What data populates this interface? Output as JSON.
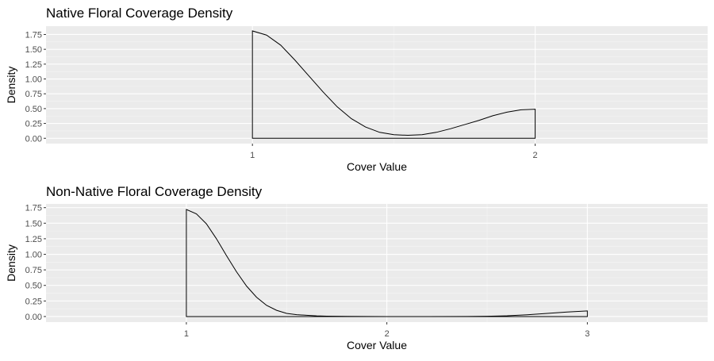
{
  "colors": {
    "panel_bg": "#ebebeb",
    "grid_major": "#ffffff",
    "grid_minor": "#f5f5f5",
    "curve": "#000000",
    "tick_text": "#4d4d4d",
    "text": "#000000"
  },
  "chart_data": [
    {
      "type": "area",
      "title": "Native Floral Coverage Density",
      "xlabel": "Cover Value",
      "ylabel": "Density",
      "xlim": [
        0.27,
        2.61
      ],
      "ylim": [
        -0.09,
        1.89
      ],
      "x_ticks": [
        1,
        2
      ],
      "y_ticks": [
        0.0,
        0.25,
        0.5,
        0.75,
        1.0,
        1.25,
        1.5,
        1.75
      ],
      "y_tick_labels": [
        "0.00",
        "0.25",
        "0.50",
        "0.75",
        "1.00",
        "1.25",
        "1.50",
        "1.75"
      ],
      "grid": true,
      "fill": "none",
      "series": [
        {
          "x": [
            1.0,
            1.05,
            1.1,
            1.15,
            1.2,
            1.25,
            1.3,
            1.35,
            1.4,
            1.45,
            1.5,
            1.55,
            1.6,
            1.65,
            1.7,
            1.75,
            1.8,
            1.85,
            1.9,
            1.95,
            2.0
          ],
          "values": [
            1.81,
            1.74,
            1.57,
            1.32,
            1.05,
            0.78,
            0.53,
            0.33,
            0.19,
            0.1,
            0.06,
            0.05,
            0.06,
            0.1,
            0.16,
            0.23,
            0.3,
            0.38,
            0.44,
            0.48,
            0.49
          ]
        }
      ]
    },
    {
      "type": "area",
      "title": "Non-Native Floral Coverage Density",
      "xlabel": "Cover Value",
      "ylabel": "Density",
      "xlim": [
        0.3,
        3.6
      ],
      "ylim": [
        -0.09,
        1.81
      ],
      "x_ticks": [
        1,
        2,
        3
      ],
      "y_ticks": [
        0.0,
        0.25,
        0.5,
        0.75,
        1.0,
        1.25,
        1.5,
        1.75
      ],
      "y_tick_labels": [
        "0.00",
        "0.25",
        "0.50",
        "0.75",
        "1.00",
        "1.25",
        "1.50",
        "1.75"
      ],
      "grid": true,
      "fill": "none",
      "series": [
        {
          "x": [
            1.0,
            1.05,
            1.1,
            1.15,
            1.2,
            1.25,
            1.3,
            1.35,
            1.4,
            1.45,
            1.5,
            1.55,
            1.6,
            1.65,
            1.7,
            1.8,
            1.9,
            2.0,
            2.2,
            2.4,
            2.5,
            2.6,
            2.7,
            2.8,
            2.9,
            3.0
          ],
          "values": [
            1.72,
            1.65,
            1.49,
            1.25,
            0.98,
            0.72,
            0.49,
            0.31,
            0.18,
            0.1,
            0.05,
            0.03,
            0.02,
            0.01,
            0.005,
            0.002,
            0.001,
            0.0,
            0.0,
            0.001,
            0.004,
            0.012,
            0.028,
            0.05,
            0.072,
            0.09
          ]
        }
      ]
    }
  ]
}
